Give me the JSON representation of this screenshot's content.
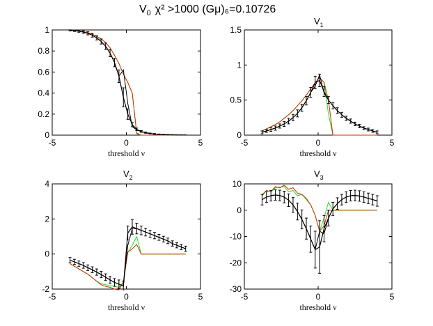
{
  "figure_title": {
    "prefix": "V",
    "prefix_sub": "0",
    "main": "χ² >1000  (Gμ)₆=0.10726"
  },
  "colors": {
    "black": "#000000",
    "red": "#d62a00",
    "green": "#19e619"
  },
  "chart_data": [
    {
      "type": "line",
      "title": "V0",
      "title_main": "",
      "title_sub": "",
      "xlabel": "threshold ν",
      "xlim": [
        -5,
        5
      ],
      "ylim": [
        0,
        1
      ],
      "xticks": [
        "-5",
        "0",
        "5"
      ],
      "xtick_values": [
        -5,
        0,
        5
      ],
      "yticks": [
        "0",
        "0.2",
        "0.4",
        "0.6",
        "0.8",
        "1"
      ],
      "ytick_values": [
        0,
        0.2,
        0.4,
        0.6,
        0.8,
        1
      ],
      "x": [
        -3.8,
        -3.5,
        -3.2,
        -2.9,
        -2.6,
        -2.3,
        -2.0,
        -1.7,
        -1.4,
        -1.1,
        -0.8,
        -0.5,
        -0.2,
        0.1,
        0.4,
        0.7,
        1.0,
        1.3,
        1.6,
        1.9,
        2.2,
        2.5,
        2.8,
        3.1,
        3.4,
        3.7,
        4.0
      ],
      "series": [
        {
          "name": "mean",
          "color": "black",
          "errorbars": true,
          "values": [
            0.996,
            0.993,
            0.988,
            0.98,
            0.968,
            0.95,
            0.925,
            0.89,
            0.845,
            0.78,
            0.69,
            0.56,
            0.36,
            0.2,
            0.1,
            0.055,
            0.035,
            0.024,
            0.016,
            0.011,
            0.008,
            0.006,
            0.004,
            0.003,
            0.002,
            0.001,
            0.001
          ],
          "errors": [
            0.005,
            0.007,
            0.01,
            0.012,
            0.015,
            0.018,
            0.02,
            0.024,
            0.03,
            0.035,
            0.04,
            0.06,
            0.09,
            0.05,
            0.02,
            0.012,
            0.008,
            0.006,
            0.004,
            0.004,
            0.003,
            0.002,
            0.002,
            0.001,
            0.001,
            0.001,
            0.001
          ]
        },
        {
          "name": "black-2",
          "color": "black",
          "values": [
            0.996,
            0.993,
            0.988,
            0.98,
            0.968,
            0.95,
            0.925,
            0.89,
            0.845,
            0.78,
            0.69,
            0.56,
            0.62,
            0.3,
            0.08,
            0.05,
            0.033,
            0.022,
            0.015,
            0.01,
            0.007,
            0.005,
            0.004,
            0.003,
            0.002,
            0.001,
            0.001
          ]
        },
        {
          "name": "green",
          "color": "green",
          "values": [
            0.997,
            0.995,
            0.99,
            0.984,
            0.975,
            0.96,
            0.94,
            0.915,
            0.88,
            0.83,
            0.76,
            0.68,
            0.58,
            0.5,
            0.4,
            0.01,
            0,
            0,
            0,
            0,
            0,
            0,
            0,
            0,
            0,
            0,
            0
          ]
        },
        {
          "name": "red",
          "color": "red",
          "values": [
            0.997,
            0.995,
            0.99,
            0.984,
            0.975,
            0.96,
            0.94,
            0.915,
            0.88,
            0.83,
            0.76,
            0.68,
            0.58,
            0.5,
            0.4,
            0.02,
            0,
            0,
            0,
            0,
            0,
            0,
            0,
            0,
            0,
            0,
            0
          ]
        }
      ]
    },
    {
      "type": "line",
      "title": "V1",
      "title_main": "V",
      "title_sub": "1",
      "xlabel": "threshold ν",
      "xlim": [
        -5,
        5
      ],
      "ylim": [
        0,
        1.5
      ],
      "xticks": [
        "-5",
        "0",
        "5"
      ],
      "xtick_values": [
        -5,
        0,
        5
      ],
      "yticks": [
        "0",
        "0.5",
        "1",
        "1.5"
      ],
      "ytick_values": [
        0,
        0.5,
        1,
        1.5
      ],
      "x": [
        -3.8,
        -3.5,
        -3.2,
        -2.9,
        -2.6,
        -2.3,
        -2.0,
        -1.7,
        -1.4,
        -1.1,
        -0.8,
        -0.5,
        -0.2,
        0.1,
        0.4,
        0.7,
        1.0,
        1.3,
        1.6,
        1.9,
        2.2,
        2.5,
        2.8,
        3.1,
        3.4,
        3.7,
        4.0
      ],
      "series": [
        {
          "name": "mean",
          "color": "black",
          "errorbars": true,
          "values": [
            0.04,
            0.06,
            0.08,
            0.1,
            0.13,
            0.16,
            0.2,
            0.25,
            0.31,
            0.39,
            0.49,
            0.61,
            0.75,
            0.78,
            0.62,
            0.5,
            0.42,
            0.35,
            0.29,
            0.24,
            0.2,
            0.16,
            0.13,
            0.1,
            0.08,
            0.06,
            0.04
          ],
          "errors": [
            0.02,
            0.02,
            0.025,
            0.03,
            0.03,
            0.035,
            0.04,
            0.045,
            0.05,
            0.05,
            0.06,
            0.07,
            0.09,
            0.09,
            0.07,
            0.05,
            0.045,
            0.04,
            0.035,
            0.03,
            0.03,
            0.025,
            0.025,
            0.02,
            0.02,
            0.02,
            0.02
          ]
        },
        {
          "name": "black-2",
          "color": "black",
          "values": [
            0.04,
            0.06,
            0.08,
            0.1,
            0.13,
            0.16,
            0.2,
            0.25,
            0.31,
            0.39,
            0.49,
            0.61,
            0.7,
            0.86,
            0.6,
            0.5,
            0.42,
            0.35,
            0.29,
            0.24,
            0.2,
            0.16,
            0.13,
            0.1,
            0.08,
            0.06,
            0.04
          ]
        },
        {
          "name": "green",
          "color": "green",
          "values": [
            0.06,
            0.09,
            0.12,
            0.15,
            0.19,
            0.24,
            0.29,
            0.35,
            0.42,
            0.49,
            0.57,
            0.66,
            0.75,
            0.82,
            0.75,
            0.3,
            0,
            0,
            0,
            0,
            0,
            0,
            0,
            0,
            0,
            0,
            0
          ]
        },
        {
          "name": "red",
          "color": "red",
          "values": [
            0.06,
            0.09,
            0.12,
            0.15,
            0.19,
            0.24,
            0.29,
            0.35,
            0.42,
            0.49,
            0.57,
            0.66,
            0.75,
            0.82,
            0.75,
            0.5,
            0,
            0,
            0,
            0,
            0,
            0,
            0,
            0,
            0,
            0,
            0
          ]
        }
      ]
    },
    {
      "type": "line",
      "title": "V2",
      "title_main": "V",
      "title_sub": "2",
      "xlabel": "threshold ν",
      "xlim": [
        -5,
        5
      ],
      "ylim": [
        -2,
        4
      ],
      "xticks": [
        "-5",
        "0",
        "5"
      ],
      "xtick_values": [
        -5,
        0,
        5
      ],
      "yticks": [
        "-2",
        "0",
        "2",
        "4"
      ],
      "ytick_values": [
        -2,
        0,
        2,
        4
      ],
      "x": [
        -3.8,
        -3.5,
        -3.2,
        -2.9,
        -2.6,
        -2.3,
        -2.0,
        -1.7,
        -1.4,
        -1.1,
        -0.8,
        -0.5,
        -0.2,
        0.1,
        0.4,
        0.7,
        1.0,
        1.3,
        1.6,
        1.9,
        2.2,
        2.5,
        2.8,
        3.1,
        3.4,
        3.7,
        4.0
      ],
      "series": [
        {
          "name": "mean",
          "color": "black",
          "errorbars": true,
          "values": [
            -0.35,
            -0.45,
            -0.55,
            -0.65,
            -0.78,
            -0.9,
            -1.03,
            -1.17,
            -1.32,
            -1.48,
            -1.62,
            -1.72,
            -1.82,
            1.2,
            1.55,
            1.45,
            1.35,
            1.25,
            1.15,
            1.05,
            0.95,
            0.85,
            0.75,
            0.6,
            0.5,
            0.4,
            0.3
          ],
          "errors": [
            0.15,
            0.15,
            0.15,
            0.16,
            0.16,
            0.17,
            0.18,
            0.18,
            0.19,
            0.2,
            0.22,
            0.24,
            0.28,
            0.4,
            0.42,
            0.3,
            0.25,
            0.22,
            0.2,
            0.18,
            0.17,
            0.16,
            0.16,
            0.15,
            0.15,
            0.15,
            0.15
          ]
        },
        {
          "name": "black-2",
          "color": "black",
          "values": [
            -0.35,
            -0.45,
            -0.55,
            -0.65,
            -0.78,
            -0.9,
            -1.03,
            -1.17,
            -1.32,
            -1.48,
            -1.62,
            -1.72,
            -1.82,
            0.5,
            1.45,
            1.45,
            1.35,
            1.25,
            1.15,
            1.05,
            0.95,
            0.85,
            0.75,
            0.6,
            0.5,
            0.4,
            0.3
          ]
        },
        {
          "name": "green",
          "color": "green",
          "values": [
            -0.55,
            -0.7,
            -0.85,
            -1.0,
            -1.15,
            -1.35,
            -1.55,
            -1.7,
            -1.75,
            -1.8,
            -1.85,
            -1.9,
            -1.6,
            0.1,
            0.5,
            1.0,
            0,
            0,
            0,
            0,
            0,
            0,
            0,
            0,
            0,
            0,
            0
          ]
        },
        {
          "name": "red",
          "color": "red",
          "values": [
            -0.55,
            -0.7,
            -0.85,
            -1.0,
            -1.15,
            -1.35,
            -1.55,
            -1.75,
            -1.85,
            -1.9,
            -2.0,
            -2.05,
            -1.6,
            0.1,
            0.3,
            0.55,
            0,
            0,
            0,
            0,
            0,
            0,
            0,
            0,
            0,
            0,
            0
          ]
        }
      ]
    },
    {
      "type": "line",
      "title": "V3",
      "title_main": "V",
      "title_sub": "3",
      "xlabel": "threshold ν",
      "xlim": [
        -5,
        5
      ],
      "ylim": [
        -30,
        10
      ],
      "xticks": [
        "-5",
        "0",
        "5"
      ],
      "xtick_values": [
        -5,
        0,
        5
      ],
      "yticks": [
        "-30",
        "-20",
        "-10",
        "0",
        "10"
      ],
      "ytick_values": [
        -30,
        -20,
        -10,
        0,
        10
      ],
      "x": [
        -3.8,
        -3.5,
        -3.2,
        -2.9,
        -2.6,
        -2.3,
        -2.0,
        -1.7,
        -1.4,
        -1.1,
        -0.8,
        -0.5,
        -0.2,
        0.1,
        0.4,
        0.7,
        1.0,
        1.3,
        1.6,
        1.9,
        2.2,
        2.5,
        2.8,
        3.1,
        3.4,
        3.7,
        4.0
      ],
      "series": [
        {
          "name": "mean",
          "color": "black",
          "errorbars": true,
          "values": [
            4.0,
            5.0,
            5.5,
            5.8,
            5.6,
            5.0,
            3.8,
            2.0,
            -0.5,
            -3.5,
            -7.0,
            -11.0,
            -15.0,
            -14.0,
            -7.0,
            -3.0,
            0.5,
            2.5,
            4.0,
            5.0,
            5.5,
            5.6,
            5.4,
            5.0,
            4.5,
            4.0,
            3.5
          ],
          "errors": [
            2.0,
            2.0,
            2.0,
            2.0,
            2.0,
            2.2,
            2.4,
            2.8,
            3.2,
            3.6,
            4.0,
            5.0,
            7.0,
            10.0,
            5.0,
            3.0,
            2.5,
            2.2,
            2.0,
            2.0,
            2.0,
            2.0,
            2.0,
            2.0,
            2.0,
            2.0,
            2.0
          ]
        },
        {
          "name": "black-2",
          "color": "black",
          "values": [
            4.0,
            5.0,
            5.5,
            5.8,
            5.6,
            5.0,
            3.8,
            2.0,
            -0.5,
            -3.5,
            -7.0,
            -11.0,
            -15.0,
            -8.0,
            -9.0,
            -3.0,
            0.5,
            2.5,
            4.0,
            5.0,
            5.5,
            5.6,
            5.4,
            5.0,
            4.5,
            4.0,
            3.5
          ]
        },
        {
          "name": "green",
          "color": "green",
          "values": [
            6.0,
            7.5,
            7.0,
            8.5,
            8.8,
            9.0,
            7.0,
            7.5,
            5.5,
            6.0,
            4.0,
            2.0,
            -2.0,
            -8.0,
            -3.0,
            3.0,
            0,
            0,
            0,
            0,
            0,
            0,
            0,
            0,
            0,
            0,
            0
          ]
        },
        {
          "name": "red",
          "color": "red",
          "values": [
            5.5,
            7.5,
            7.0,
            9.0,
            8.5,
            9.5,
            8.0,
            8.5,
            6.5,
            6.0,
            4.5,
            2.0,
            -2.0,
            -8.0,
            -6.0,
            0,
            0,
            0,
            0,
            0,
            0,
            0,
            0,
            0,
            0,
            0,
            0
          ]
        }
      ]
    }
  ]
}
